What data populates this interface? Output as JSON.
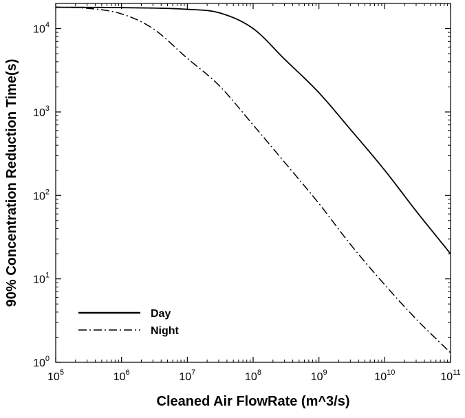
{
  "chart_data": {
    "type": "line",
    "title": "",
    "xlabel": "Cleaned Air FlowRate (m^3/s)",
    "ylabel": "90% Concentration Reduction Time(s)",
    "x_scale": "log",
    "y_scale": "log",
    "xlim": [
      100000,
      100000000000
    ],
    "ylim": [
      1,
      20000
    ],
    "x_ticks": [
      {
        "value": 100000,
        "base": "10",
        "exp": "5"
      },
      {
        "value": 1000000,
        "base": "10",
        "exp": "6"
      },
      {
        "value": 10000000,
        "base": "10",
        "exp": "7"
      },
      {
        "value": 100000000,
        "base": "10",
        "exp": "8"
      },
      {
        "value": 1000000000,
        "base": "10",
        "exp": "9"
      },
      {
        "value": 10000000000,
        "base": "10",
        "exp": "10"
      },
      {
        "value": 100000000000,
        "base": "10",
        "exp": "11"
      }
    ],
    "y_ticks": [
      {
        "value": 1,
        "base": "10",
        "exp": "0"
      },
      {
        "value": 10,
        "base": "10",
        "exp": "1"
      },
      {
        "value": 100,
        "base": "10",
        "exp": "2"
      },
      {
        "value": 1000,
        "base": "10",
        "exp": "3"
      },
      {
        "value": 10000,
        "base": "10",
        "exp": "4"
      }
    ],
    "grid": false,
    "legend_position": "bottom-left",
    "series": [
      {
        "name": "Day",
        "style": "solid",
        "x": [
          100000,
          1000000,
          10000000,
          30000000,
          100000000,
          300000000,
          1000000000,
          3000000000,
          10000000000,
          30000000000,
          100000000000
        ],
        "y": [
          18000,
          17800,
          17000,
          15500,
          10000,
          4300,
          1700,
          620,
          200,
          65,
          20
        ]
      },
      {
        "name": "Night",
        "style": "dash-dot",
        "x": [
          100000,
          300000,
          1000000,
          3000000,
          10000000,
          30000000,
          100000000,
          300000000,
          1000000000,
          3000000000,
          10000000000,
          30000000000,
          100000000000
        ],
        "y": [
          18000,
          17500,
          15000,
          10000,
          4400,
          2100,
          700,
          250,
          80,
          26,
          8.5,
          3.3,
          1.3
        ]
      }
    ]
  }
}
